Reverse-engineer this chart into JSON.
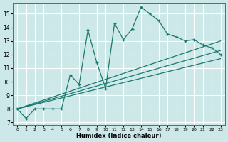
{
  "xlabel": "Humidex (Indice chaleur)",
  "ylabel": "",
  "bg_color": "#cde8e8",
  "grid_color": "#ffffff",
  "line_color": "#1a7a6e",
  "xlim": [
    -0.5,
    23.5
  ],
  "ylim": [
    6.8,
    15.8
  ],
  "xticks": [
    0,
    1,
    2,
    3,
    4,
    5,
    6,
    7,
    8,
    9,
    10,
    11,
    12,
    13,
    14,
    15,
    16,
    17,
    18,
    19,
    20,
    21,
    22,
    23
  ],
  "yticks": [
    7,
    8,
    9,
    10,
    11,
    12,
    13,
    14,
    15
  ],
  "main_line_x": [
    0,
    1,
    2,
    3,
    4,
    5,
    6,
    7,
    8,
    9,
    10,
    11,
    12,
    13,
    14,
    15,
    16,
    17,
    18,
    19,
    20,
    21,
    22,
    23
  ],
  "main_line_y": [
    8.0,
    7.3,
    8.0,
    8.0,
    8.0,
    8.0,
    10.5,
    9.8,
    13.8,
    11.4,
    9.5,
    14.3,
    13.1,
    13.9,
    15.5,
    15.0,
    14.5,
    13.5,
    13.3,
    13.0,
    13.1,
    12.7,
    12.5,
    12.0
  ],
  "trend1_x": [
    0,
    23
  ],
  "trend1_y": [
    8.0,
    13.0
  ],
  "trend2_x": [
    0,
    23
  ],
  "trend2_y": [
    8.0,
    12.3
  ],
  "trend3_x": [
    0,
    23
  ],
  "trend3_y": [
    8.0,
    11.7
  ],
  "figsize": [
    3.2,
    2.0
  ],
  "dpi": 100
}
